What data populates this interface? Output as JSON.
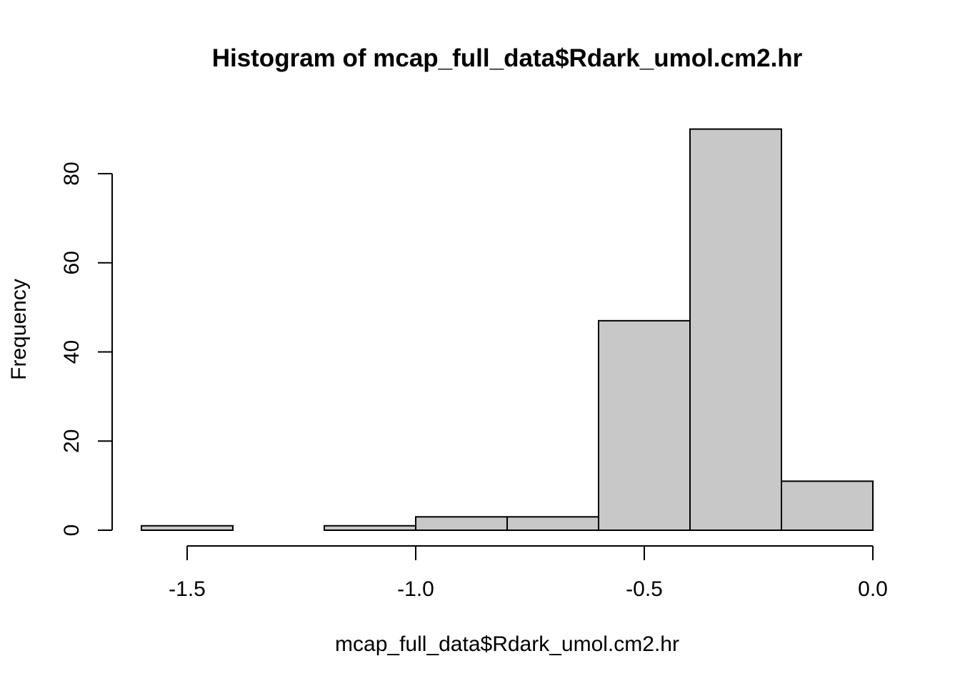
{
  "chart_data": {
    "type": "bar",
    "subtype": "histogram",
    "title": "Histogram of mcap_full_data$Rdark_umol.cm2.hr",
    "xlabel": "mcap_full_data$Rdark_umol.cm2.hr",
    "ylabel": "Frequency",
    "bins": [
      {
        "start": -1.6,
        "end": -1.4,
        "count": 1
      },
      {
        "start": -1.4,
        "end": -1.2,
        "count": 0
      },
      {
        "start": -1.2,
        "end": -1.0,
        "count": 1
      },
      {
        "start": -1.0,
        "end": -0.8,
        "count": 3
      },
      {
        "start": -0.8,
        "end": -0.6,
        "count": 3
      },
      {
        "start": -0.6,
        "end": -0.4,
        "count": 47
      },
      {
        "start": -0.4,
        "end": -0.2,
        "count": 90
      },
      {
        "start": -0.2,
        "end": 0.0,
        "count": 11
      }
    ],
    "xlim": [
      -1.6,
      0.0
    ],
    "ylim": [
      0,
      90
    ],
    "x_ticks": [
      -1.5,
      -1.0,
      -0.5,
      0.0
    ],
    "x_tick_labels": [
      "-1.5",
      "-1.0",
      "-0.5",
      "0.0"
    ],
    "y_ticks": [
      0,
      20,
      40,
      60,
      80
    ],
    "y_tick_labels": [
      "0",
      "20",
      "40",
      "60",
      "80"
    ],
    "bar_color": "#c8c8c8",
    "grid": false,
    "legend": "none"
  }
}
